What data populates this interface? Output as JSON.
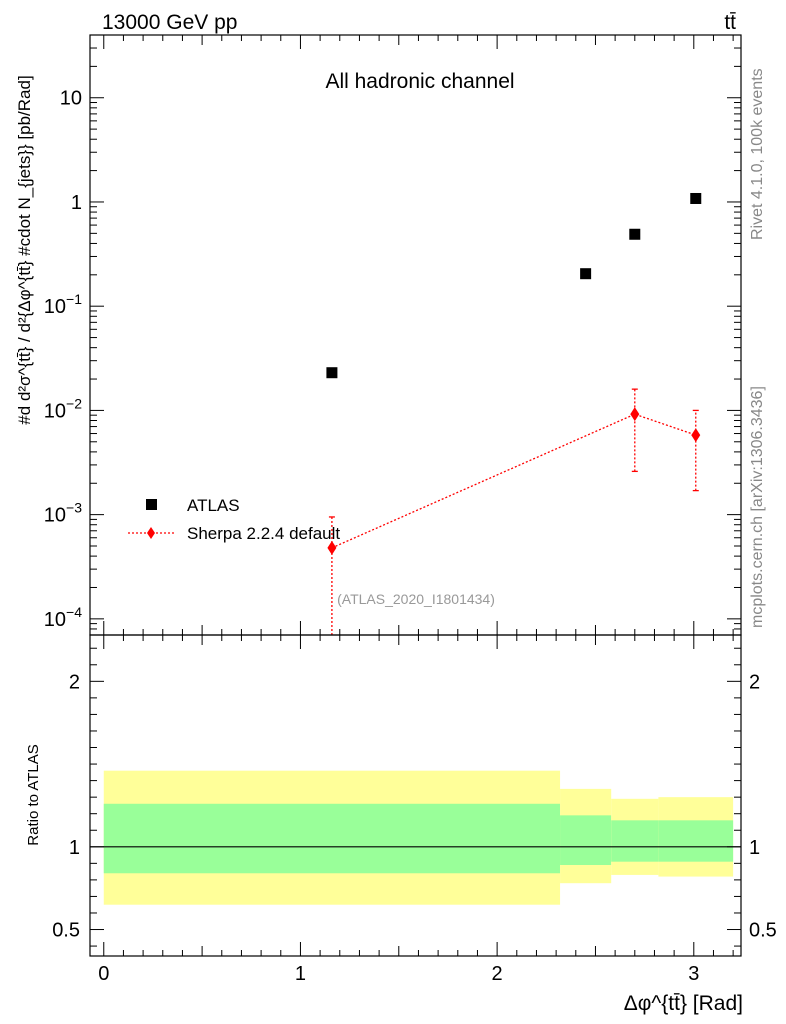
{
  "header": {
    "energy_label": "13000 GeV pp",
    "process_label": "tt̄"
  },
  "side": {
    "rivet_label": "Rivet 4.1.0,  100k events",
    "mcplots_label": "mcplots.cern.ch [arXiv:1306.3436]"
  },
  "colors": {
    "atlas": "#000000",
    "sherpa": "#ff0000",
    "band_inner": "#99ff99",
    "band_outer": "#ffff99",
    "analysis_label": "#999999"
  },
  "chart_data": [
    {
      "type": "scatter",
      "panel": "main",
      "title": "All hadronic channel",
      "analysis_label": "(ATLAS_2020_I1801434)",
      "ylabel": "#d d²σ^{tt̄} / d²{Δφ^{tt̄} #cdot N_{jets}} [pb/Rad]",
      "yscale": "log",
      "ylim": [
        7e-05,
        40
      ],
      "xlim": [
        -0.07,
        3.24
      ],
      "yticks": [
        {
          "value": 0.0001,
          "label_base": "10",
          "label_exp": "−4"
        },
        {
          "value": 0.001,
          "label_base": "10",
          "label_exp": "−3"
        },
        {
          "value": 0.01,
          "label_base": "10",
          "label_exp": "−2"
        },
        {
          "value": 0.1,
          "label_base": "10",
          "label_exp": "−1"
        },
        {
          "value": 1,
          "label_base": "1",
          "label_exp": ""
        },
        {
          "value": 10,
          "label_base": "10",
          "label_exp": ""
        }
      ],
      "legend": [
        {
          "label": "ATLAS",
          "marker": "square"
        },
        {
          "label": "Sherpa 2.2.4 default",
          "marker": "diamond"
        }
      ],
      "series": [
        {
          "name": "ATLAS",
          "x": [
            1.16,
            2.45,
            2.7,
            3.01
          ],
          "y": [
            0.023,
            0.205,
            0.49,
            1.08
          ]
        },
        {
          "name": "Sherpa 2.2.4 default",
          "x": [
            1.16,
            2.7,
            3.01
          ],
          "y": [
            0.00048,
            0.0092,
            0.0058
          ],
          "y_low": [
            6e-05,
            0.0026,
            0.0017
          ],
          "y_high": [
            0.00095,
            0.016,
            0.01
          ]
        }
      ]
    },
    {
      "type": "area",
      "panel": "ratio",
      "ylabel": "Ratio to ATLAS",
      "xlabel": "Δφ^{tt̄} [Rad]",
      "xlim": [
        -0.07,
        3.24
      ],
      "ylim": [
        0.34,
        2.28
      ],
      "yticks": [
        0.5,
        1,
        2
      ],
      "ytick_labels": [
        "0.5",
        "1",
        "2"
      ],
      "xticks": [
        0,
        1,
        2,
        3
      ],
      "xtick_labels": [
        "0",
        "1",
        "2",
        "3"
      ],
      "reference_line": 1,
      "bins": [
        {
          "xlo": 0.0,
          "xhi": 2.32,
          "inner": [
            0.84,
            1.26
          ],
          "outer": [
            0.65,
            1.46
          ]
        },
        {
          "xlo": 2.32,
          "xhi": 2.58,
          "inner": [
            0.89,
            1.19
          ],
          "outer": [
            0.78,
            1.35
          ]
        },
        {
          "xlo": 2.58,
          "xhi": 2.82,
          "inner": [
            0.91,
            1.16
          ],
          "outer": [
            0.83,
            1.29
          ]
        },
        {
          "xlo": 2.82,
          "xhi": 3.2,
          "inner": [
            0.91,
            1.16
          ],
          "outer": [
            0.82,
            1.3
          ]
        }
      ]
    }
  ]
}
